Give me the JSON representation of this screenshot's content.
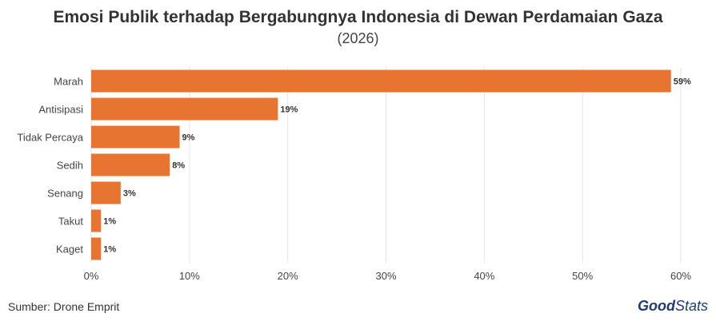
{
  "title": "Emosi Publik terhadap Bergabungnya Indonesia di Dewan Perdamaian Gaza",
  "subtitle": "(2026)",
  "source": "Sumber: Drone Emprit",
  "logo": {
    "part1": "Good",
    "part2": "Stats"
  },
  "colors": {
    "bar": "#e87431",
    "grid": "#e6e6e6",
    "text": "#333333"
  },
  "chart_data": {
    "type": "bar",
    "orientation": "horizontal",
    "categories": [
      "Marah",
      "Antisipasi",
      "Tidak Percaya",
      "Sedih",
      "Senang",
      "Takut",
      "Kaget"
    ],
    "values": [
      59,
      19,
      9,
      8,
      3,
      1,
      1
    ],
    "value_labels": [
      "59%",
      "19%",
      "9%",
      "8%",
      "3%",
      "1%",
      "1%"
    ],
    "xlim": [
      0,
      60
    ],
    "xticks": [
      0,
      10,
      20,
      30,
      40,
      50,
      60
    ],
    "xtick_labels": [
      "0%",
      "10%",
      "20%",
      "30%",
      "40%",
      "50%",
      "60%"
    ],
    "grid": true
  }
}
